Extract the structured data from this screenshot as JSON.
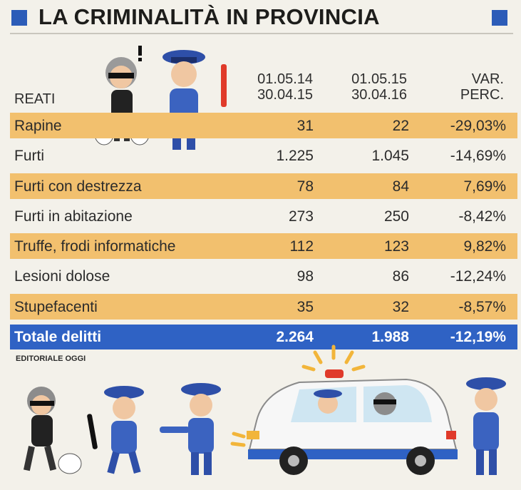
{
  "header": {
    "title": "LA CRIMINALITÀ IN PROVINCIA",
    "reati_label": "REATI",
    "col1_line1": "01.05.14",
    "col1_line2": "30.04.15",
    "col2_line1": "01.05.15",
    "col2_line2": "30.04.16",
    "col3_line1": "VAR.",
    "col3_line2": "PERC."
  },
  "rows": [
    {
      "name": "Rapine",
      "v1": "31",
      "v2": "22",
      "v3": "-29,03%"
    },
    {
      "name": "Furti",
      "v1": "1.225",
      "v2": "1.045",
      "v3": "-14,69%"
    },
    {
      "name": "Furti con destrezza",
      "v1": "78",
      "v2": "84",
      "v3": "7,69%"
    },
    {
      "name": "Furti in abitazione",
      "v1": "273",
      "v2": "250",
      "v3": "-8,42%"
    },
    {
      "name": "Truffe, frodi informatiche",
      "v1": "112",
      "v2": "123",
      "v3": "9,82%"
    },
    {
      "name": "Lesioni dolose",
      "v1": "98",
      "v2": "86",
      "v3": "-12,24%"
    },
    {
      "name": "Stupefacenti",
      "v1": "35",
      "v2": "32",
      "v3": "-8,57%"
    }
  ],
  "total": {
    "name": "Totale delitti",
    "v1": "2.264",
    "v2": "1.988",
    "v3": "-12,19%"
  },
  "credit": "EDITORIALE OGGI",
  "colors": {
    "accent": "#2f62c4",
    "row_band": "#f2c06e",
    "background": "#f3f1ea"
  },
  "chart_data": {
    "type": "table",
    "columns": [
      "REATI",
      "01.05.14 30.04.15",
      "01.05.15 30.04.16",
      "VAR. PERC."
    ],
    "categories": [
      "Rapine",
      "Furti",
      "Furti con destrezza",
      "Furti in abitazione",
      "Truffe, frodi informatiche",
      "Lesioni dolose",
      "Stupefacenti",
      "Totale delitti"
    ],
    "series": [
      {
        "name": "01.05.14 30.04.15",
        "values": [
          31,
          1225,
          78,
          273,
          112,
          98,
          35,
          2264
        ]
      },
      {
        "name": "01.05.15 30.04.16",
        "values": [
          22,
          1045,
          84,
          250,
          123,
          86,
          32,
          1988
        ]
      },
      {
        "name": "VAR. PERC.",
        "values": [
          -29.03,
          -14.69,
          7.69,
          -8.42,
          9.82,
          -12.24,
          -8.57,
          -12.19
        ]
      }
    ]
  }
}
